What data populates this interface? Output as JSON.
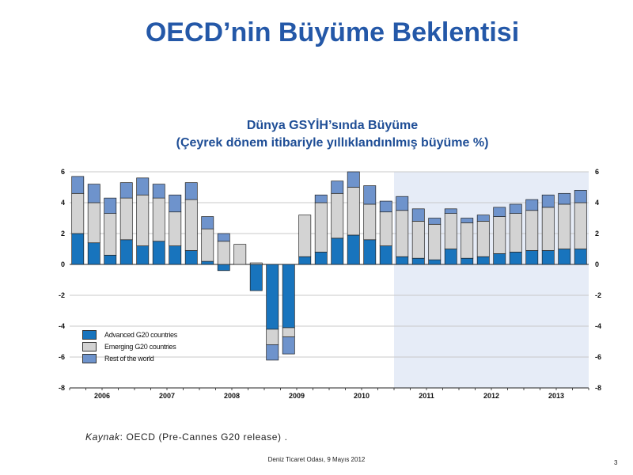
{
  "slide": {
    "title": "OECD’nin Büyüme Beklentisi",
    "source_label": "Kaynak",
    "source_text": ": OECD (Pre-Cannes G20 release) .",
    "footer": "Deniz Ticaret Odası, 9 Mayıs 2012",
    "page_number": "3"
  },
  "colors": {
    "advanced": "#1874BD",
    "emerging": "#D3D3D3",
    "rest": "#6E93CC",
    "forecast_band": "#E6ECF7",
    "title": "#2458A8"
  },
  "chart_data": {
    "type": "bar",
    "stacked": true,
    "title": "Dünya GSYİH’sında Büyüme",
    "subtitle": "(Çeyrek  dönem itibariyle yıllıklandınlmış büyüme %)",
    "ylim": [
      -8,
      6
    ],
    "yticks": [
      "-8",
      "-6",
      "-4",
      "-2",
      "0",
      "2",
      "4",
      "6"
    ],
    "ytick_values": [
      -8,
      -6,
      -4,
      -2,
      0,
      2,
      4,
      6
    ],
    "years": [
      "2006",
      "2007",
      "2008",
      "2009",
      "2010",
      "2011",
      "2012",
      "2013"
    ],
    "quarters_per_year": 4,
    "forecast_start_index": 20,
    "grid": true,
    "legend_position": "bottom-left",
    "series": [
      {
        "name": "Advanced G20 countries",
        "values": [
          2.0,
          1.4,
          0.6,
          1.6,
          1.2,
          1.5,
          1.2,
          0.9,
          0.2,
          -0.4,
          0.0,
          -1.7,
          -4.2,
          -4.1,
          0.5,
          0.8,
          1.7,
          1.9,
          1.6,
          1.2,
          0.5,
          0.4,
          0.3,
          1.0,
          0.4,
          0.5,
          0.7,
          0.8,
          0.9,
          0.9,
          1.0,
          1.0
        ]
      },
      {
        "name": "Emerging G20 countries",
        "values": [
          2.6,
          2.6,
          2.7,
          2.7,
          3.3,
          2.8,
          2.2,
          3.3,
          2.1,
          1.5,
          1.3,
          0.1,
          -1.0,
          -0.6,
          2.7,
          3.2,
          2.9,
          3.1,
          2.3,
          2.2,
          3.0,
          2.4,
          2.3,
          2.3,
          2.3,
          2.3,
          2.4,
          2.5,
          2.6,
          2.8,
          2.9,
          3.0
        ]
      },
      {
        "name": "Rest of the world",
        "values": [
          1.1,
          1.2,
          1.0,
          1.0,
          1.1,
          0.9,
          1.1,
          1.1,
          0.8,
          0.5,
          0.0,
          0.0,
          -1.0,
          -1.1,
          0.0,
          0.5,
          0.8,
          1.0,
          1.2,
          0.7,
          0.9,
          0.8,
          0.4,
          0.3,
          0.3,
          0.4,
          0.6,
          0.6,
          0.7,
          0.8,
          0.7,
          0.8
        ]
      }
    ]
  }
}
